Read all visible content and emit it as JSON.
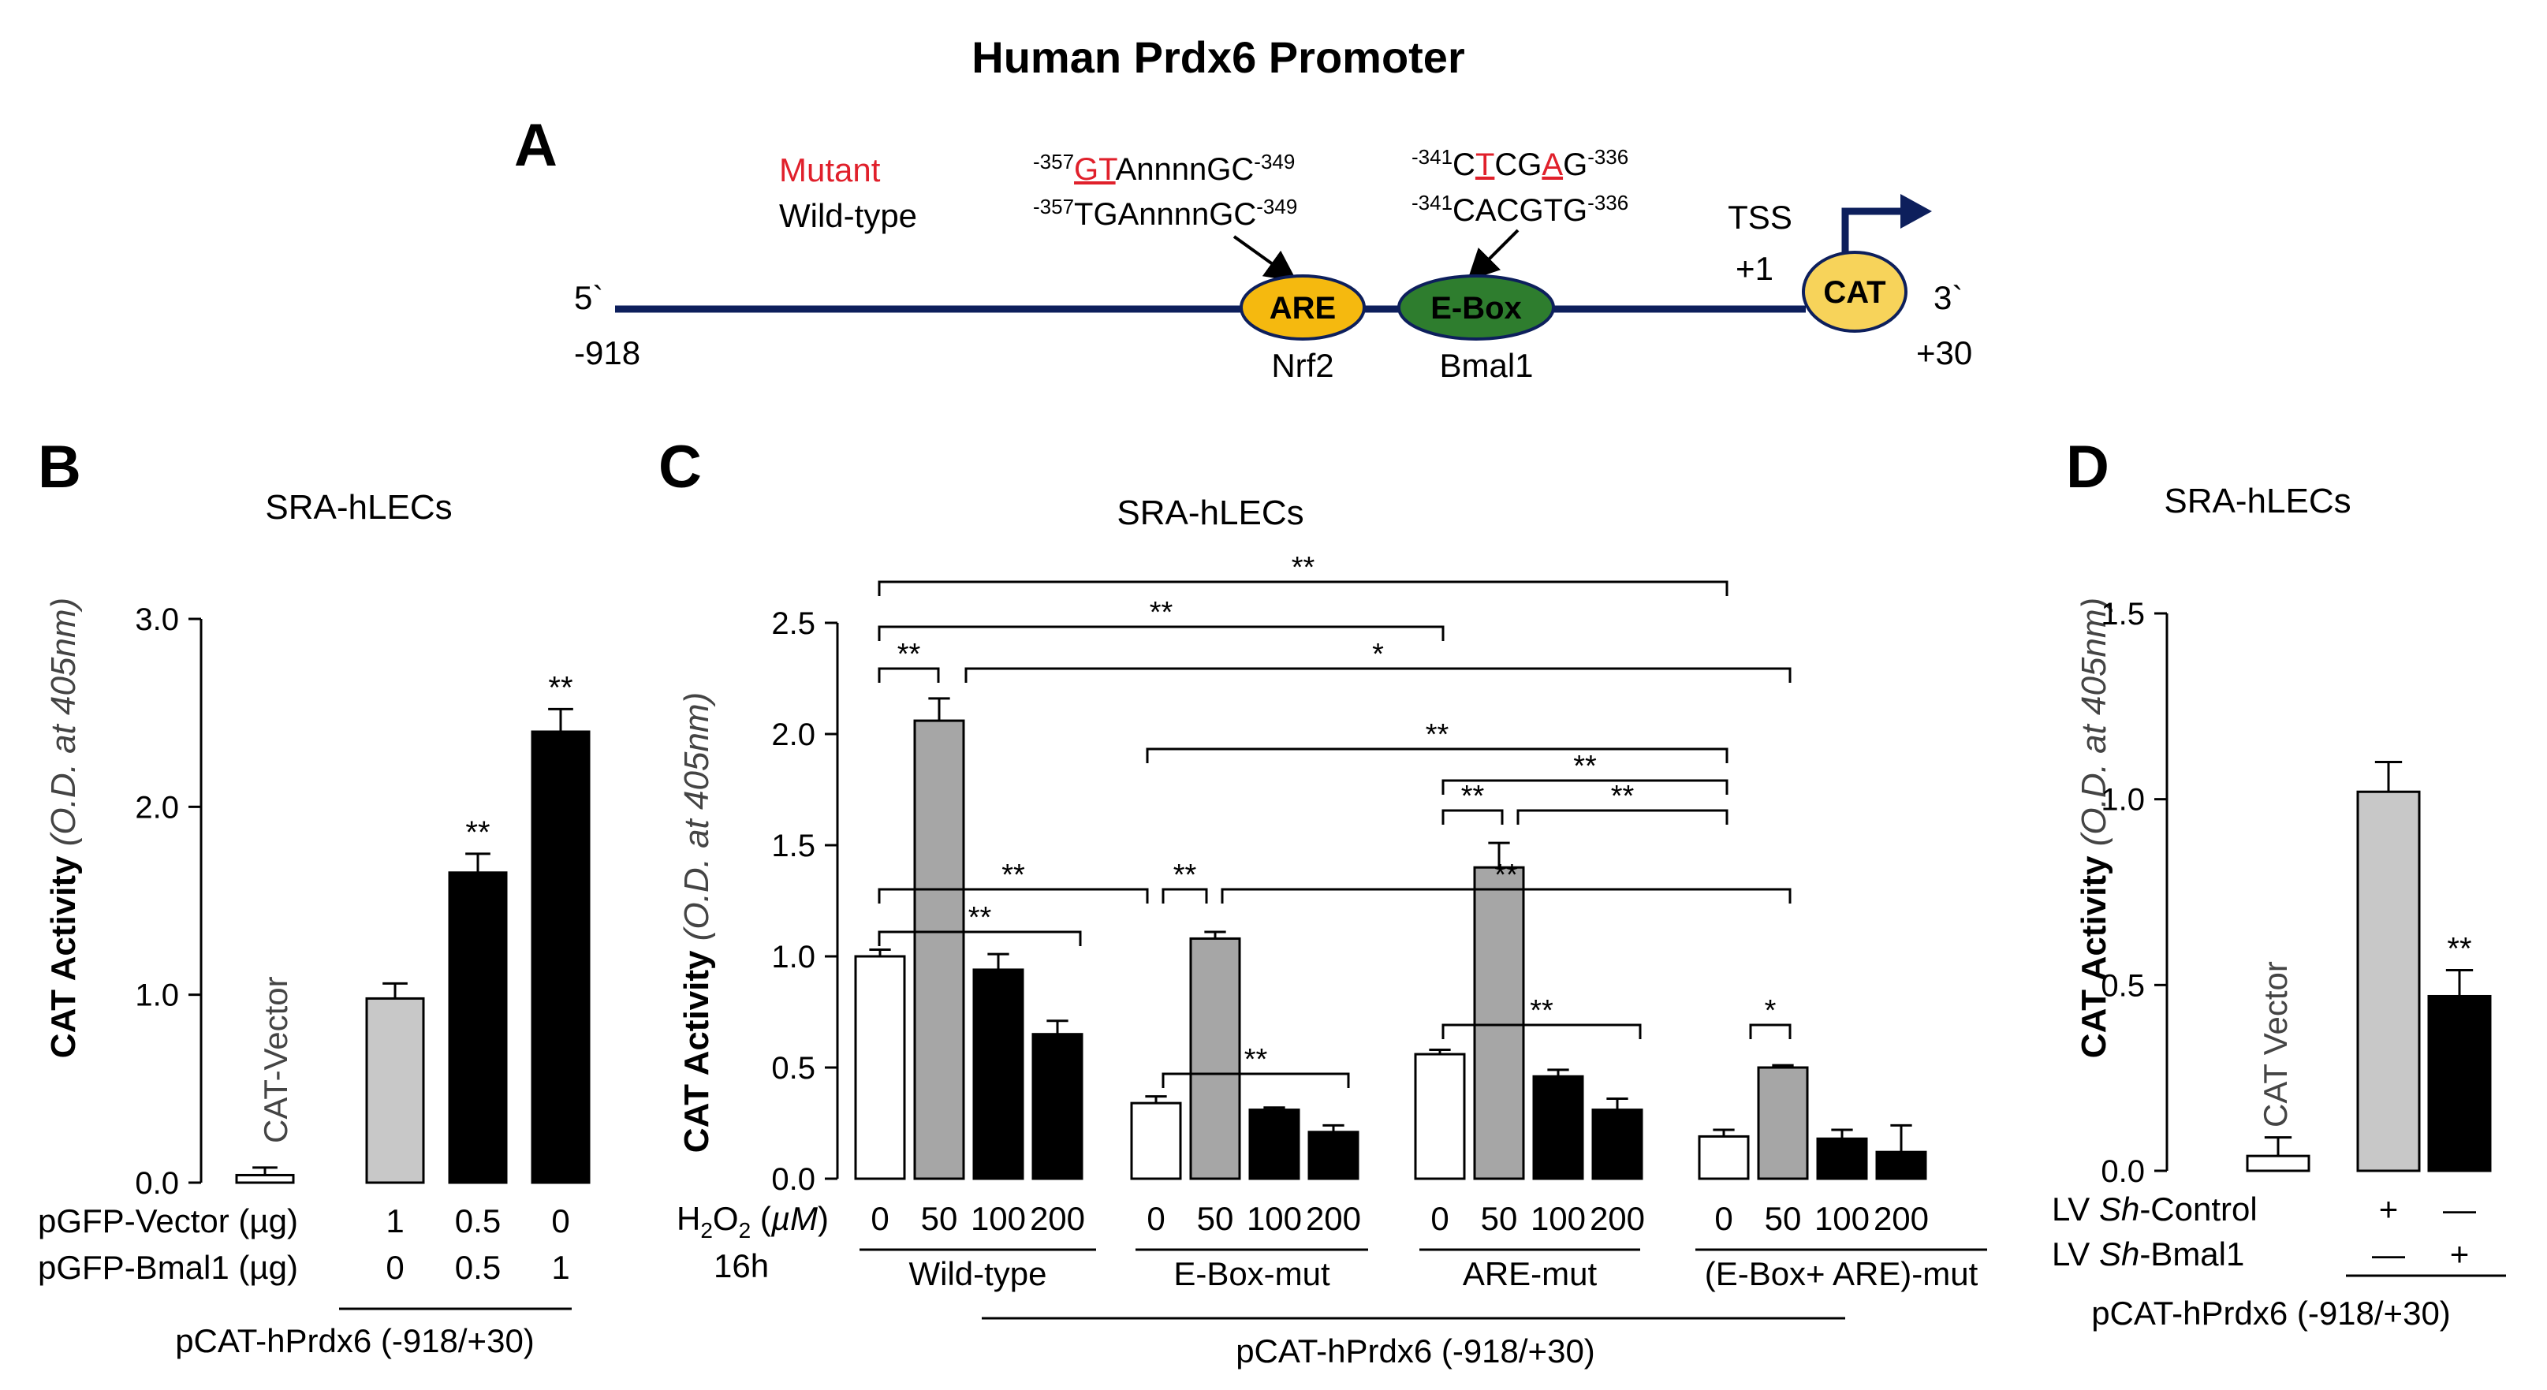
{
  "figure_title": "Human Prdx6 Promoter",
  "panel_labels": {
    "a": "A",
    "b": "B",
    "c": "C",
    "d": "D"
  },
  "colors": {
    "line": "#0d1f5c",
    "are_fill": "#f5b90f",
    "ebox_fill": "#2e7d2e",
    "cat_fill": "#f7d35a",
    "mut_red": "#e0202b",
    "white_bar": "#ffffff",
    "light_bar": "#c8c8c8",
    "mid_bar": "#a6a6a6",
    "black_bar": "#000000"
  },
  "promoter": {
    "legend_mutant": "Mutant",
    "legend_wildtype": "Wild-type",
    "five_prime": "5`",
    "three_prime": "3`",
    "start": "-918",
    "end": "+30",
    "are": {
      "label": "ARE",
      "factor": "Nrf2",
      "mut": {
        "sup1": "-357",
        "seq_a": "GT",
        "seq_b": "AnnnnGC",
        "sup2": "-349"
      },
      "wt": {
        "sup1": "-357",
        "seq": "TGAnnnnGC",
        "sup2": "-349"
      }
    },
    "ebox": {
      "label": "E-Box",
      "factor": "Bmal1",
      "mut": {
        "sup1": "-341",
        "p1": "C",
        "p2": "T",
        "p3": "CG",
        "p4": "A",
        "p5": "G",
        "sup2": "-336"
      },
      "wt": {
        "sup1": "-341",
        "seq": "CACGTG",
        "sup2": "-336"
      }
    },
    "tss": "TSS",
    "tss_pos": "+1",
    "cat": "CAT"
  },
  "chart_data": [
    {
      "panel": "B",
      "type": "bar",
      "title": "SRA-hLECs",
      "ylabel": "CAT Activity",
      "ylabel_units": "(O.D. at 405nm)",
      "ylim": [
        0,
        3.0
      ],
      "yticks": [
        "0.0",
        "1.0",
        "2.0",
        "3.0"
      ],
      "bar_label": "CAT-Vector",
      "values": [
        0.04,
        0.98,
        1.65,
        2.4
      ],
      "errors": [
        0.04,
        0.08,
        0.1,
        0.12
      ],
      "significance": [
        "",
        "",
        "**",
        "**"
      ],
      "row_labels": [
        "pGFP-Vector (µg)",
        "pGFP-Bmal1 (µg)"
      ],
      "rows": [
        [
          "",
          "1",
          "0.5",
          "0"
        ],
        [
          "",
          "0",
          "0.5",
          "1"
        ]
      ],
      "construct": "pCAT-hPrdx6 (-918/+30)"
    },
    {
      "panel": "C",
      "type": "bar",
      "title": "SRA-hLECs",
      "ylabel": "CAT Activity",
      "ylabel_units": "(O.D. at 405nm)",
      "ylim": [
        0,
        2.5
      ],
      "yticks": [
        "0.0",
        "0.5",
        "1.0",
        "1.5",
        "2.0",
        "2.5"
      ],
      "x_label_top": "H2O2 (µM)",
      "x_label_bottom": "16h",
      "doses": [
        "0",
        "50",
        "100",
        "200"
      ],
      "groups": [
        {
          "name": "Wild-type",
          "values": [
            1.0,
            2.06,
            0.94,
            0.65
          ],
          "errors": [
            0.03,
            0.1,
            0.07,
            0.06
          ]
        },
        {
          "name": "E-Box-mut",
          "values": [
            0.34,
            1.08,
            0.31,
            0.21
          ],
          "errors": [
            0.03,
            0.03,
            0.01,
            0.03
          ]
        },
        {
          "name": "ARE-mut",
          "values": [
            0.56,
            1.4,
            0.46,
            0.31
          ],
          "errors": [
            0.02,
            0.11,
            0.03,
            0.05
          ]
        },
        {
          "name": "(E-Box+ ARE)-mut",
          "values": [
            0.19,
            0.5,
            0.18,
            0.12
          ],
          "errors": [
            0.03,
            0.01,
            0.04,
            0.12
          ]
        }
      ],
      "significance": [
        "**",
        "**",
        "**",
        "*",
        "**",
        "**",
        "**",
        "**",
        "**",
        "**",
        "**",
        "**",
        "**",
        "**",
        "*"
      ],
      "construct": "pCAT-hPrdx6 (-918/+30)"
    },
    {
      "panel": "D",
      "type": "bar",
      "title": "SRA-hLECs",
      "ylabel": "CAT Activity",
      "ylabel_units": "(O.D. at 405nm)",
      "ylim": [
        0,
        1.5
      ],
      "yticks": [
        "0.0",
        "0.5",
        "1.0",
        "1.5"
      ],
      "bar_label": "CAT Vector",
      "values": [
        0.04,
        1.02,
        0.47
      ],
      "errors": [
        0.05,
        0.08,
        0.07
      ],
      "significance": [
        "",
        "",
        "**"
      ],
      "row_labels": [
        "LV Sh-Control",
        "LV Sh-Bmal1"
      ],
      "rows": [
        [
          "",
          "+",
          "—"
        ],
        [
          "",
          "—",
          "+"
        ]
      ],
      "construct": "pCAT-hPrdx6 (-918/+30)"
    }
  ]
}
